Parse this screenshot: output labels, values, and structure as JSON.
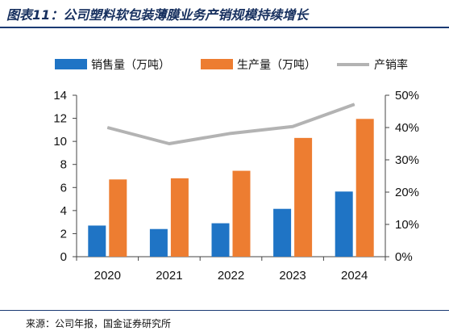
{
  "title": "图表11：公司塑料软包装薄膜业务产销规模持续增长",
  "source": "来源：公司年报，国金证券研究所",
  "colors": {
    "sales": "#1f74c5",
    "production": "#ed7d31",
    "rate": "#b3b3b3",
    "rule": "#1a3a73"
  },
  "chart_data": {
    "type": "bar",
    "categories": [
      "2020",
      "2021",
      "2022",
      "2023",
      "2024"
    ],
    "series": [
      {
        "name": "销售量（万吨）",
        "type": "bar",
        "axis": "left",
        "values": [
          2.7,
          2.4,
          2.9,
          4.15,
          5.65
        ]
      },
      {
        "name": "生产量（万吨）",
        "type": "bar",
        "axis": "left",
        "values": [
          6.7,
          6.8,
          7.45,
          10.3,
          11.95
        ]
      },
      {
        "name": "产销率",
        "type": "line",
        "axis": "right",
        "values": [
          40,
          35,
          38.2,
          40.3,
          47.2
        ]
      }
    ],
    "y_left": {
      "lim": [
        0,
        14
      ],
      "ticks": [
        "0",
        "2",
        "4",
        "6",
        "8",
        "10",
        "12",
        "14"
      ]
    },
    "y_right": {
      "lim": [
        0,
        50
      ],
      "ticks": [
        "0%",
        "10%",
        "20%",
        "30%",
        "40%",
        "50%"
      ]
    },
    "legend_position": "top",
    "grid": false
  }
}
